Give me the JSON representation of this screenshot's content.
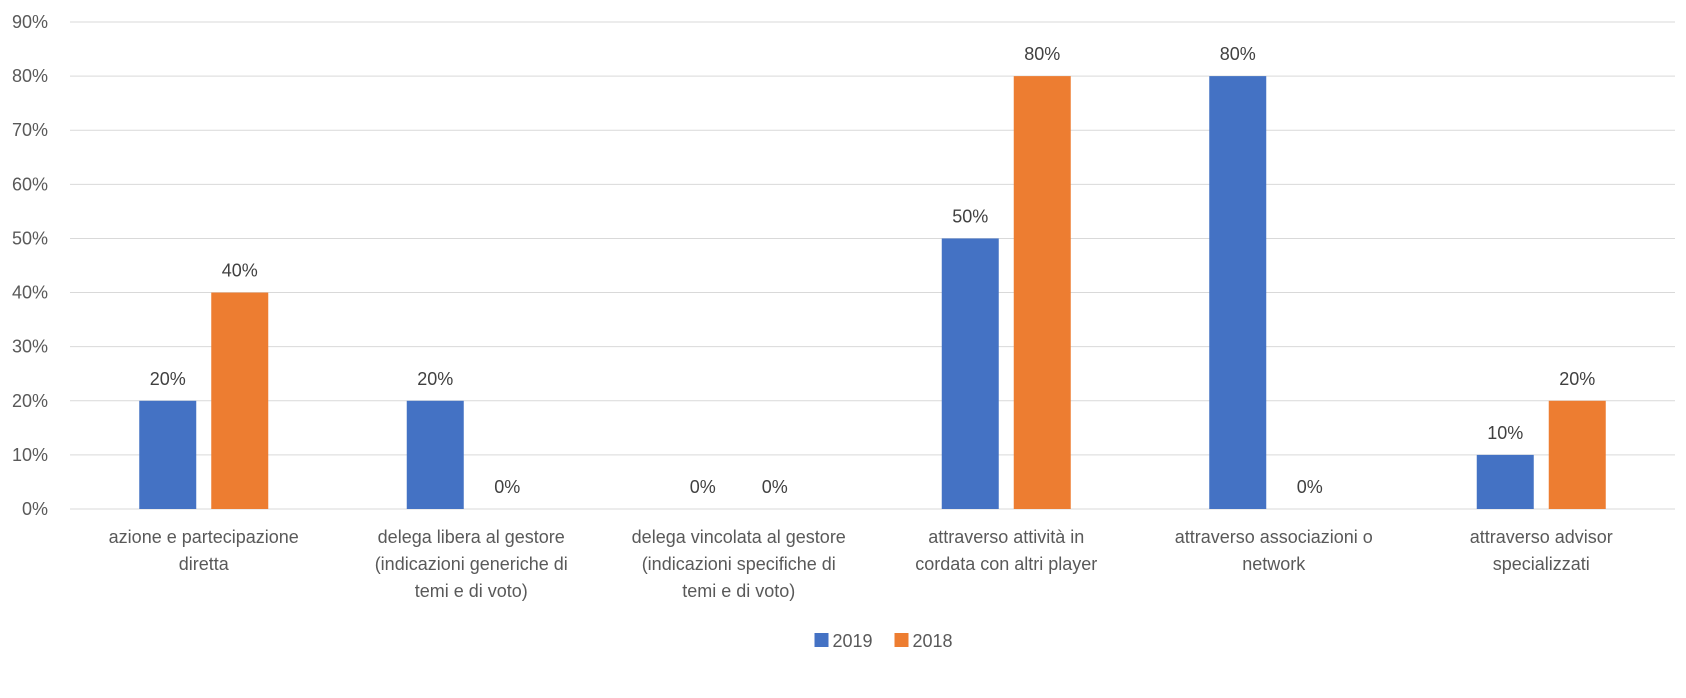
{
  "chart_data": {
    "type": "bar",
    "title": "",
    "xlabel": "",
    "ylabel": "",
    "ylim": [
      0,
      90
    ],
    "ytick_step": 10,
    "ytick_suffix": "%",
    "grid": true,
    "legend_position": "bottom",
    "categories": [
      [
        "azione e partecipazione",
        "diretta"
      ],
      [
        "delega libera al gestore",
        "(indicazioni generiche di",
        "temi e di voto)"
      ],
      [
        "delega vincolata al gestore",
        "(indicazioni specifiche di",
        "temi e di voto)"
      ],
      [
        "attraverso attività in",
        "cordata con altri player"
      ],
      [
        "attraverso associazioni o",
        "network"
      ],
      [
        "attraverso advisor",
        "specializzati"
      ]
    ],
    "series": [
      {
        "name": "2019",
        "color": "#4472C4",
        "values": [
          20,
          20,
          0,
          50,
          80,
          10
        ]
      },
      {
        "name": "2018",
        "color": "#ED7D31",
        "values": [
          40,
          0,
          0,
          80,
          0,
          20
        ]
      }
    ]
  }
}
